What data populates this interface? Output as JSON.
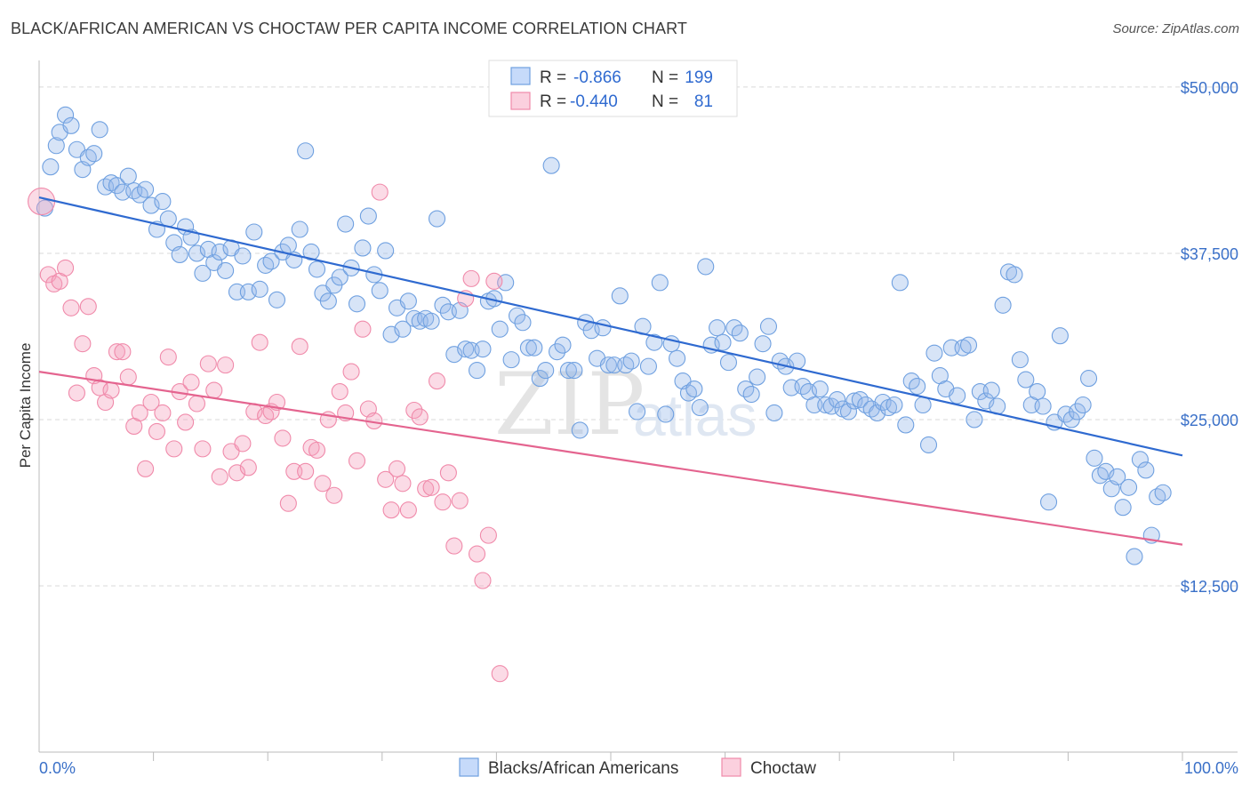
{
  "header": {
    "title": "BLACK/AFRICAN AMERICAN VS CHOCTAW PER CAPITA INCOME CORRELATION CHART",
    "source": "Source: ZipAtlas.com"
  },
  "watermark": {
    "zip": "ZIP",
    "atlas": "atlas"
  },
  "legend": {
    "rows": [
      {
        "r_label": "R =",
        "r_value": "-0.866",
        "n_label": "N =",
        "n_value": "199",
        "color": "#6fa0e0"
      },
      {
        "r_label": "R =",
        "r_value": "-0.440",
        "n_label": "N =",
        "n_value": "81",
        "color": "#f08aaa"
      }
    ]
  },
  "bottom_legend": [
    {
      "label": "Blacks/African Americans",
      "color": "#6fa0e0"
    },
    {
      "label": "Choctaw",
      "color": "#f08aaa"
    }
  ],
  "chart_data": {
    "type": "scatter",
    "title": "BLACK/AFRICAN AMERICAN VS CHOCTAW PER CAPITA INCOME CORRELATION CHART",
    "xlabel": "",
    "ylabel": "Per Capita Income",
    "xlim": [
      0,
      100
    ],
    "ylim": [
      0,
      52000
    ],
    "x_tick_labels": [
      "0.0%",
      "100.0%"
    ],
    "y_ticks": [
      12500,
      25000,
      37500,
      50000
    ],
    "y_tick_labels": [
      "$12,500",
      "$25,000",
      "$37,500",
      "$50,000"
    ],
    "grid": true,
    "legend_position": "top-center",
    "series": [
      {
        "name": "Blacks/African Americans",
        "color": "#6fa0e0",
        "trend": {
          "x": [
            0,
            100
          ],
          "y": [
            41700,
            22300
          ]
        },
        "points": [
          [
            0.5,
            40.9
          ],
          [
            1,
            44
          ],
          [
            1.5,
            45.6
          ],
          [
            1.8,
            46.6
          ],
          [
            2.3,
            47.9
          ],
          [
            2.8,
            47.1
          ],
          [
            3.3,
            45.3
          ],
          [
            3.8,
            43.8
          ],
          [
            4.3,
            44.7
          ],
          [
            4.8,
            45
          ],
          [
            5.3,
            46.8
          ],
          [
            5.8,
            42.5
          ],
          [
            6.3,
            42.8
          ],
          [
            6.8,
            42.6
          ],
          [
            7.3,
            42.1
          ],
          [
            7.8,
            43.3
          ],
          [
            8.3,
            42.2
          ],
          [
            8.8,
            41.9
          ],
          [
            9.3,
            42.3
          ],
          [
            9.8,
            41.1
          ],
          [
            10.3,
            39.3
          ],
          [
            10.8,
            41.4
          ],
          [
            11.3,
            40.1
          ],
          [
            11.8,
            38.3
          ],
          [
            12.3,
            37.4
          ],
          [
            12.8,
            39.5
          ],
          [
            13.3,
            38.7
          ],
          [
            13.8,
            37.5
          ],
          [
            14.3,
            36
          ],
          [
            14.8,
            37.8
          ],
          [
            15.3,
            36.8
          ],
          [
            15.8,
            37.6
          ],
          [
            16.3,
            36.2
          ],
          [
            16.8,
            37.9
          ],
          [
            17.3,
            34.6
          ],
          [
            17.8,
            37.3
          ],
          [
            18.3,
            34.6
          ],
          [
            18.8,
            39.1
          ],
          [
            19.3,
            34.8
          ],
          [
            19.8,
            36.6
          ],
          [
            20.3,
            36.9
          ],
          [
            20.8,
            34
          ],
          [
            21.3,
            37.6
          ],
          [
            21.8,
            38.1
          ],
          [
            22.3,
            37
          ],
          [
            22.8,
            39.3
          ],
          [
            23.3,
            45.2
          ],
          [
            23.8,
            37.6
          ],
          [
            24.3,
            36.3
          ],
          [
            24.8,
            34.5
          ],
          [
            25.3,
            33.9
          ],
          [
            25.8,
            35.1
          ],
          [
            26.3,
            35.7
          ],
          [
            26.8,
            39.7
          ],
          [
            27.3,
            36.4
          ],
          [
            27.8,
            33.7
          ],
          [
            28.3,
            37.9
          ],
          [
            28.8,
            40.3
          ],
          [
            29.3,
            35.9
          ],
          [
            29.8,
            34.7
          ],
          [
            30.3,
            37.7
          ],
          [
            30.8,
            31.4
          ],
          [
            31.3,
            33.4
          ],
          [
            31.8,
            31.8
          ],
          [
            32.3,
            33.9
          ],
          [
            32.8,
            32.6
          ],
          [
            33.3,
            32.4
          ],
          [
            33.8,
            32.6
          ],
          [
            34.3,
            32.4
          ],
          [
            34.8,
            40.1
          ],
          [
            35.3,
            33.6
          ],
          [
            35.8,
            33.1
          ],
          [
            36.3,
            29.9
          ],
          [
            36.8,
            33.2
          ],
          [
            37.3,
            30.3
          ],
          [
            37.8,
            30.2
          ],
          [
            38.3,
            28.7
          ],
          [
            38.8,
            30.3
          ],
          [
            39.3,
            33.9
          ],
          [
            39.8,
            34.1
          ],
          [
            40.3,
            31.8
          ],
          [
            40.8,
            35.3
          ],
          [
            41.3,
            29.5
          ],
          [
            41.8,
            32.8
          ],
          [
            42.3,
            32.3
          ],
          [
            42.8,
            30.4
          ],
          [
            43.3,
            30.4
          ],
          [
            43.8,
            28.1
          ],
          [
            44.3,
            28.7
          ],
          [
            44.8,
            44.1
          ],
          [
            45.3,
            30.1
          ],
          [
            45.8,
            30.6
          ],
          [
            46.3,
            28.7
          ],
          [
            46.8,
            28.7
          ],
          [
            47.3,
            24.2
          ],
          [
            47.8,
            32.3
          ],
          [
            48.3,
            31.7
          ],
          [
            48.8,
            29.6
          ],
          [
            49.3,
            31.9
          ],
          [
            49.8,
            29.1
          ],
          [
            50.3,
            29.1
          ],
          [
            50.8,
            34.3
          ],
          [
            51.3,
            29.1
          ],
          [
            51.8,
            29.4
          ],
          [
            52.3,
            25.6
          ],
          [
            52.8,
            32
          ],
          [
            53.3,
            29
          ],
          [
            53.8,
            30.8
          ],
          [
            54.3,
            35.3
          ],
          [
            54.8,
            25.4
          ],
          [
            55.3,
            30.7
          ],
          [
            55.8,
            29.6
          ],
          [
            56.3,
            27.9
          ],
          [
            56.8,
            27
          ],
          [
            57.3,
            27.3
          ],
          [
            57.8,
            25.9
          ],
          [
            58.3,
            36.5
          ],
          [
            58.8,
            30.6
          ],
          [
            59.3,
            31.9
          ],
          [
            59.8,
            30.8
          ],
          [
            60.3,
            29.3
          ],
          [
            60.8,
            31.9
          ],
          [
            61.3,
            31.5
          ],
          [
            61.8,
            27.3
          ],
          [
            62.3,
            26.9
          ],
          [
            62.8,
            28.2
          ],
          [
            63.3,
            30.7
          ],
          [
            63.8,
            32
          ],
          [
            64.3,
            25.5
          ],
          [
            64.8,
            29.4
          ],
          [
            65.3,
            29
          ],
          [
            65.8,
            27.4
          ],
          [
            66.3,
            29.4
          ],
          [
            66.8,
            27.5
          ],
          [
            67.3,
            27.1
          ],
          [
            67.8,
            26.1
          ],
          [
            68.3,
            27.3
          ],
          [
            68.8,
            26.1
          ],
          [
            69.3,
            26
          ],
          [
            69.8,
            26.5
          ],
          [
            70.3,
            25.8
          ],
          [
            70.8,
            25.6
          ],
          [
            71.3,
            26.4
          ],
          [
            71.8,
            26.5
          ],
          [
            72.3,
            26.1
          ],
          [
            72.8,
            25.8
          ],
          [
            73.3,
            25.5
          ],
          [
            73.8,
            26.3
          ],
          [
            74.3,
            25.9
          ],
          [
            74.8,
            26.1
          ],
          [
            75.3,
            35.3
          ],
          [
            75.8,
            24.6
          ],
          [
            76.3,
            27.9
          ],
          [
            76.8,
            27.5
          ],
          [
            77.3,
            26.1
          ],
          [
            77.8,
            23.1
          ],
          [
            78.3,
            30
          ],
          [
            78.8,
            28.3
          ],
          [
            79.3,
            27.3
          ],
          [
            79.8,
            30.4
          ],
          [
            80.3,
            26.8
          ],
          [
            80.8,
            30.4
          ],
          [
            81.3,
            30.6
          ],
          [
            81.8,
            25
          ],
          [
            82.3,
            27.1
          ],
          [
            82.8,
            26.4
          ],
          [
            83.3,
            27.2
          ],
          [
            83.8,
            26
          ],
          [
            84.3,
            33.6
          ],
          [
            84.8,
            36.1
          ],
          [
            85.3,
            35.9
          ],
          [
            85.8,
            29.5
          ],
          [
            86.3,
            28
          ],
          [
            86.8,
            26.1
          ],
          [
            87.3,
            27.1
          ],
          [
            87.8,
            26
          ],
          [
            88.3,
            18.8
          ],
          [
            88.8,
            24.8
          ],
          [
            89.3,
            31.3
          ],
          [
            89.8,
            25.4
          ],
          [
            90.3,
            25
          ],
          [
            90.8,
            25.6
          ],
          [
            91.3,
            26.1
          ],
          [
            91.8,
            28.1
          ],
          [
            92.3,
            22.1
          ],
          [
            92.8,
            20.8
          ],
          [
            93.3,
            21.1
          ],
          [
            93.8,
            19.8
          ],
          [
            94.3,
            20.7
          ],
          [
            94.8,
            18.4
          ],
          [
            95.3,
            19.9
          ],
          [
            95.8,
            14.7
          ],
          [
            96.3,
            22
          ],
          [
            96.8,
            21.2
          ],
          [
            97.3,
            16.3
          ],
          [
            97.8,
            19.2
          ],
          [
            98.3,
            19.5
          ]
        ]
      },
      {
        "name": "Choctaw",
        "color": "#f08aaa",
        "trend": {
          "x": [
            0,
            100
          ],
          "y": [
            28600,
            15600
          ]
        },
        "points": [
          [
            0.2,
            41.4
          ],
          [
            0.8,
            35.9
          ],
          [
            1.3,
            35.2
          ],
          [
            1.8,
            35.4
          ],
          [
            2.3,
            36.4
          ],
          [
            2.8,
            33.4
          ],
          [
            3.3,
            27
          ],
          [
            3.8,
            30.7
          ],
          [
            4.3,
            33.5
          ],
          [
            4.8,
            28.3
          ],
          [
            5.3,
            27.4
          ],
          [
            5.8,
            26.3
          ],
          [
            6.3,
            27.2
          ],
          [
            6.8,
            30.1
          ],
          [
            7.3,
            30.1
          ],
          [
            7.8,
            28.2
          ],
          [
            8.3,
            24.5
          ],
          [
            8.8,
            25.5
          ],
          [
            9.3,
            21.3
          ],
          [
            9.8,
            26.3
          ],
          [
            10.3,
            24.1
          ],
          [
            10.8,
            25.5
          ],
          [
            11.3,
            29.7
          ],
          [
            11.8,
            22.8
          ],
          [
            12.3,
            27.1
          ],
          [
            12.8,
            24.8
          ],
          [
            13.3,
            27.8
          ],
          [
            13.8,
            26.2
          ],
          [
            14.3,
            22.8
          ],
          [
            14.8,
            29.2
          ],
          [
            15.3,
            27.2
          ],
          [
            15.8,
            20.7
          ],
          [
            16.3,
            29.1
          ],
          [
            16.8,
            22.6
          ],
          [
            17.3,
            21
          ],
          [
            17.8,
            23.2
          ],
          [
            18.3,
            21.4
          ],
          [
            18.8,
            25.6
          ],
          [
            19.3,
            30.8
          ],
          [
            19.8,
            25.3
          ],
          [
            20.3,
            25.6
          ],
          [
            20.8,
            26.3
          ],
          [
            21.3,
            23.6
          ],
          [
            21.8,
            18.7
          ],
          [
            22.3,
            21.1
          ],
          [
            22.8,
            30.5
          ],
          [
            23.3,
            21.1
          ],
          [
            23.8,
            22.9
          ],
          [
            24.3,
            22.7
          ],
          [
            24.8,
            20.2
          ],
          [
            25.3,
            25
          ],
          [
            25.8,
            19.3
          ],
          [
            26.3,
            27.1
          ],
          [
            26.8,
            25.5
          ],
          [
            27.3,
            28.6
          ],
          [
            27.8,
            21.9
          ],
          [
            28.3,
            31.8
          ],
          [
            28.8,
            25.8
          ],
          [
            29.3,
            24.9
          ],
          [
            29.8,
            42.1
          ],
          [
            30.3,
            20.5
          ],
          [
            30.8,
            18.2
          ],
          [
            31.3,
            21.3
          ],
          [
            31.8,
            20.2
          ],
          [
            32.3,
            18.2
          ],
          [
            32.8,
            25.7
          ],
          [
            33.3,
            25.2
          ],
          [
            33.8,
            19.8
          ],
          [
            34.3,
            19.9
          ],
          [
            34.8,
            27.9
          ],
          [
            35.3,
            18.8
          ],
          [
            35.8,
            21
          ],
          [
            36.3,
            15.5
          ],
          [
            36.8,
            18.9
          ],
          [
            37.3,
            34.1
          ],
          [
            37.8,
            35.6
          ],
          [
            38.3,
            14.9
          ],
          [
            38.8,
            12.9
          ],
          [
            39.3,
            16.3
          ],
          [
            39.8,
            35.4
          ],
          [
            40.3,
            5.9
          ]
        ]
      }
    ]
  }
}
